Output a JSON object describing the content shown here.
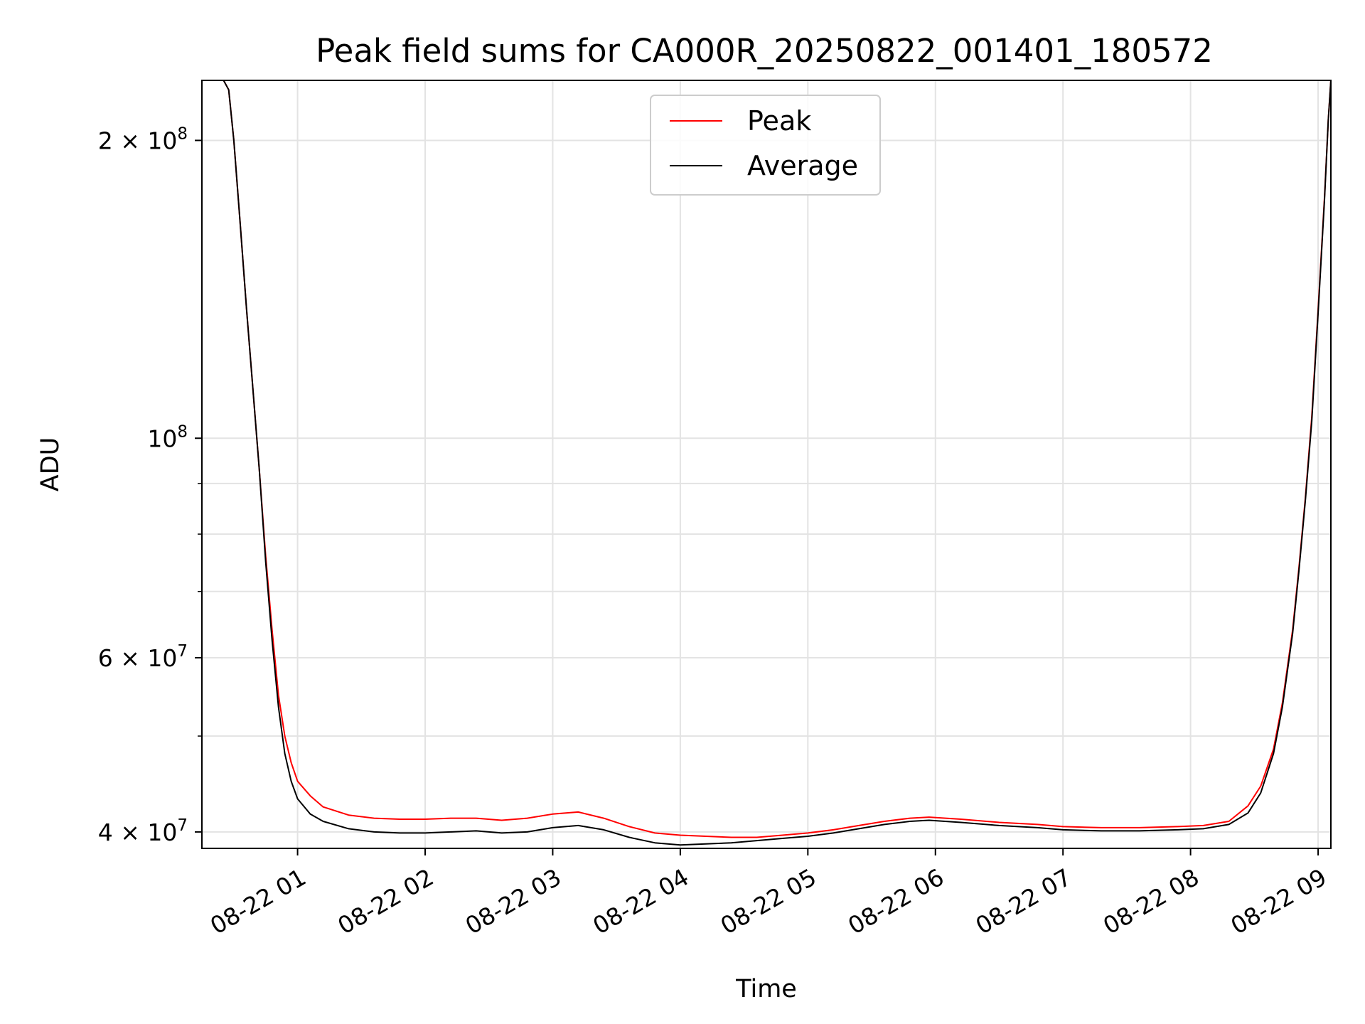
{
  "chart_data": {
    "type": "line",
    "title": "Peak field sums for CA000R_20250822_001401_180572",
    "xlabel": "Time",
    "ylabel": "ADU",
    "yscale": "log",
    "grid": true,
    "legend_position": "top-center",
    "x_unit": "hours",
    "xlim": [
      0.25,
      9.1
    ],
    "ylim": [
      38500000,
      230000000
    ],
    "x_ticks": [
      1,
      2,
      3,
      4,
      5,
      6,
      7,
      8,
      9
    ],
    "x_tick_labels": [
      "08-22 01",
      "08-22 02",
      "08-22 03",
      "08-22 04",
      "08-22 05",
      "08-22 06",
      "08-22 07",
      "08-22 08",
      "08-22 09"
    ],
    "y_major_ticks": [
      {
        "value": 40000000,
        "mantissa": "4",
        "exponent": "7"
      },
      {
        "value": 60000000,
        "mantissa": "6",
        "exponent": "7"
      },
      {
        "value": 100000000,
        "mantissa": "",
        "exponent": "8"
      },
      {
        "value": 200000000,
        "mantissa": "2",
        "exponent": "8"
      }
    ],
    "y_minor_ticks": [
      50000000,
      70000000,
      80000000,
      90000000
    ],
    "series": [
      {
        "name": "Peak",
        "color": "#ff0000",
        "points": [
          [
            0.25,
            230000000
          ],
          [
            0.42,
            230000000
          ],
          [
            0.46,
            225000000
          ],
          [
            0.5,
            200000000
          ],
          [
            0.55,
            165000000
          ],
          [
            0.6,
            135000000
          ],
          [
            0.65,
            112000000
          ],
          [
            0.7,
            93000000
          ],
          [
            0.75,
            76000000
          ],
          [
            0.8,
            64000000
          ],
          [
            0.85,
            55000000
          ],
          [
            0.9,
            50000000
          ],
          [
            0.95,
            47000000
          ],
          [
            1.0,
            45000000
          ],
          [
            1.1,
            43500000
          ],
          [
            1.2,
            42400000
          ],
          [
            1.4,
            41600000
          ],
          [
            1.6,
            41300000
          ],
          [
            1.8,
            41200000
          ],
          [
            2.0,
            41200000
          ],
          [
            2.2,
            41300000
          ],
          [
            2.4,
            41300000
          ],
          [
            2.6,
            41100000
          ],
          [
            2.8,
            41300000
          ],
          [
            3.0,
            41700000
          ],
          [
            3.2,
            41900000
          ],
          [
            3.4,
            41300000
          ],
          [
            3.6,
            40500000
          ],
          [
            3.8,
            39900000
          ],
          [
            4.0,
            39700000
          ],
          [
            4.2,
            39600000
          ],
          [
            4.4,
            39500000
          ],
          [
            4.6,
            39500000
          ],
          [
            4.8,
            39700000
          ],
          [
            5.0,
            39900000
          ],
          [
            5.2,
            40200000
          ],
          [
            5.4,
            40600000
          ],
          [
            5.6,
            41000000
          ],
          [
            5.8,
            41300000
          ],
          [
            5.95,
            41400000
          ],
          [
            6.2,
            41200000
          ],
          [
            6.5,
            40900000
          ],
          [
            6.8,
            40700000
          ],
          [
            7.0,
            40500000
          ],
          [
            7.3,
            40400000
          ],
          [
            7.6,
            40400000
          ],
          [
            7.9,
            40500000
          ],
          [
            8.1,
            40600000
          ],
          [
            8.3,
            41000000
          ],
          [
            8.45,
            42500000
          ],
          [
            8.55,
            44500000
          ],
          [
            8.65,
            48500000
          ],
          [
            8.72,
            54000000
          ],
          [
            8.8,
            64000000
          ],
          [
            8.85,
            74000000
          ],
          [
            8.9,
            87000000
          ],
          [
            8.95,
            105000000
          ],
          [
            9.0,
            135000000
          ],
          [
            9.05,
            175000000
          ],
          [
            9.08,
            210000000
          ],
          [
            9.1,
            230000000
          ]
        ]
      },
      {
        "name": "Average",
        "color": "#000000",
        "points": [
          [
            0.25,
            230000000
          ],
          [
            0.42,
            230000000
          ],
          [
            0.46,
            225000000
          ],
          [
            0.5,
            200000000
          ],
          [
            0.55,
            165000000
          ],
          [
            0.6,
            135000000
          ],
          [
            0.65,
            112000000
          ],
          [
            0.7,
            93000000
          ],
          [
            0.75,
            75000000
          ],
          [
            0.8,
            62500000
          ],
          [
            0.85,
            53500000
          ],
          [
            0.9,
            48000000
          ],
          [
            0.95,
            45000000
          ],
          [
            1.0,
            43200000
          ],
          [
            1.1,
            41700000
          ],
          [
            1.2,
            41000000
          ],
          [
            1.4,
            40300000
          ],
          [
            1.6,
            40000000
          ],
          [
            1.8,
            39900000
          ],
          [
            2.0,
            39900000
          ],
          [
            2.2,
            40000000
          ],
          [
            2.4,
            40100000
          ],
          [
            2.6,
            39900000
          ],
          [
            2.8,
            40000000
          ],
          [
            3.0,
            40400000
          ],
          [
            3.2,
            40600000
          ],
          [
            3.4,
            40200000
          ],
          [
            3.6,
            39500000
          ],
          [
            3.8,
            39000000
          ],
          [
            4.0,
            38800000
          ],
          [
            4.2,
            38900000
          ],
          [
            4.4,
            39000000
          ],
          [
            4.6,
            39200000
          ],
          [
            4.8,
            39400000
          ],
          [
            5.0,
            39600000
          ],
          [
            5.2,
            39900000
          ],
          [
            5.4,
            40300000
          ],
          [
            5.6,
            40700000
          ],
          [
            5.8,
            41000000
          ],
          [
            5.95,
            41100000
          ],
          [
            6.2,
            40900000
          ],
          [
            6.5,
            40600000
          ],
          [
            6.8,
            40400000
          ],
          [
            7.0,
            40200000
          ],
          [
            7.3,
            40100000
          ],
          [
            7.6,
            40100000
          ],
          [
            7.9,
            40200000
          ],
          [
            8.1,
            40300000
          ],
          [
            8.3,
            40700000
          ],
          [
            8.45,
            41800000
          ],
          [
            8.55,
            43800000
          ],
          [
            8.65,
            48000000
          ],
          [
            8.72,
            53500000
          ],
          [
            8.8,
            63500000
          ],
          [
            8.85,
            73500000
          ],
          [
            8.9,
            86500000
          ],
          [
            8.95,
            104000000
          ],
          [
            9.0,
            134000000
          ],
          [
            9.05,
            174000000
          ],
          [
            9.08,
            210000000
          ],
          [
            9.1,
            230000000
          ]
        ]
      }
    ]
  }
}
